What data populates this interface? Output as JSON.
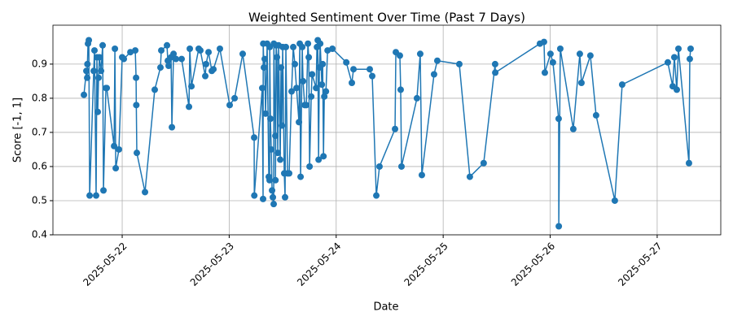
{
  "chart_data": {
    "type": "line",
    "title": "Weighted Sentiment Over Time (Past 7 Days)",
    "x_label": "Date",
    "y_label": "Score [-1, 1]",
    "color": "#1f77b4",
    "grid": true,
    "x": [
      "2025-05-21 15:25",
      "2025-05-21 15:58",
      "2025-05-21 16:09",
      "2025-05-21 16:12",
      "2025-05-21 16:20",
      "2025-05-21 16:31",
      "2025-05-21 16:42",
      "2025-05-21 17:37",
      "2025-05-21 17:47",
      "2025-05-21 18:09",
      "2025-05-21 18:20",
      "2025-05-21 18:31",
      "2025-05-21 18:42",
      "2025-05-21 18:53",
      "2025-05-21 19:15",
      "2025-05-21 19:37",
      "2025-05-21 19:48",
      "2025-05-21 20:21",
      "2025-05-21 20:32",
      "2025-05-21 22:11",
      "2025-05-21 22:22",
      "2025-05-21 22:33",
      "2025-05-21 23:16",
      "2025-05-22 00:00",
      "2025-05-22 00:22",
      "2025-05-22 01:50",
      "2025-05-22 02:56",
      "2025-05-22 03:07",
      "2025-05-22 03:10",
      "2025-05-22 03:17",
      "2025-05-22 05:07",
      "2025-05-22 07:18",
      "2025-05-22 08:35",
      "2025-05-22 08:46",
      "2025-05-22 10:03",
      "2025-05-22 10:14",
      "2025-05-22 10:25",
      "2025-05-22 10:58",
      "2025-05-22 11:09",
      "2025-05-22 11:31",
      "2025-05-22 12:04",
      "2025-05-22 13:20",
      "2025-05-22 14:59",
      "2025-05-22 15:10",
      "2025-05-22 15:32",
      "2025-05-22 17:10",
      "2025-05-22 17:32",
      "2025-05-22 18:38",
      "2025-05-22 18:49",
      "2025-05-22 19:22",
      "2025-05-22 20:06",
      "2025-05-22 20:28",
      "2025-05-22 21:55",
      "2025-05-23 00:07",
      "2025-05-23 01:13",
      "2025-05-23 03:02",
      "2025-05-23 05:36",
      "2025-05-23 05:38",
      "2025-05-23 07:25",
      "2025-05-23 07:36",
      "2025-05-23 07:38",
      "2025-05-23 07:47",
      "2025-05-23 07:58",
      "2025-05-23 08:09",
      "2025-05-23 08:31",
      "2025-05-23 08:53",
      "2025-05-23 09:04",
      "2025-05-23 09:06",
      "2025-05-23 09:15",
      "2025-05-23 09:26",
      "2025-05-23 09:37",
      "2025-05-23 09:48",
      "2025-05-23 09:59",
      "2025-05-23 10:01",
      "2025-05-23 10:21",
      "2025-05-23 10:23",
      "2025-05-23 10:32",
      "2025-05-23 10:43",
      "2025-05-23 10:54",
      "2025-05-23 11:05",
      "2025-05-23 11:27",
      "2025-05-23 11:38",
      "2025-05-23 11:49",
      "2025-05-23 12:00",
      "2025-05-23 12:21",
      "2025-05-23 12:32",
      "2025-05-23 12:43",
      "2025-05-23 13:05",
      "2025-05-23 13:27",
      "2025-05-23 14:00",
      "2025-05-23 14:22",
      "2025-05-23 14:44",
      "2025-05-23 15:06",
      "2025-05-23 15:39",
      "2025-05-23 15:50",
      "2025-05-23 16:01",
      "2025-05-23 16:23",
      "2025-05-23 16:34",
      "2025-05-23 16:56",
      "2025-05-23 17:18",
      "2025-05-23 17:40",
      "2025-05-23 17:51",
      "2025-05-23 18:02",
      "2025-05-23 18:24",
      "2025-05-23 18:35",
      "2025-05-23 19:30",
      "2025-05-23 19:41",
      "2025-05-23 19:52",
      "2025-05-23 20:03",
      "2025-05-23 20:14",
      "2025-05-23 20:25",
      "2025-05-23 20:47",
      "2025-05-23 20:58",
      "2025-05-23 21:09",
      "2025-05-23 21:20",
      "2025-05-23 21:42",
      "2025-05-23 22:04",
      "2025-05-23 23:09",
      "2025-05-24 02:16",
      "2025-05-24 03:31",
      "2025-05-24 03:53",
      "2025-05-24 07:32",
      "2025-05-24 08:05",
      "2025-05-24 09:00",
      "2025-05-24 09:43",
      "2025-05-24 13:12",
      "2025-05-24 13:23",
      "2025-05-24 14:17",
      "2025-05-24 14:28",
      "2025-05-24 14:39",
      "2025-05-24 18:07",
      "2025-05-24 18:51",
      "2025-05-24 19:13",
      "2025-05-24 21:57",
      "2025-05-24 22:41",
      "2025-05-25 03:37",
      "2025-05-25 05:59",
      "2025-05-25 09:05",
      "2025-05-25 11:39",
      "2025-05-25 11:41",
      "2025-05-25 21:42",
      "2025-05-25 22:37",
      "2025-05-25 22:48",
      "2025-05-26 00:04",
      "2025-05-26 00:37",
      "2025-05-26 01:54",
      "2025-05-26 01:56",
      "2025-05-26 02:16",
      "2025-05-26 05:11",
      "2025-05-26 06:39",
      "2025-05-26 07:01",
      "2025-05-26 09:01",
      "2025-05-26 10:18",
      "2025-05-26 14:30",
      "2025-05-26 16:09",
      "2025-05-27 02:23",
      "2025-05-27 03:29",
      "2025-05-27 03:51",
      "2025-05-27 04:24",
      "2025-05-27 04:46",
      "2025-05-27 07:08",
      "2025-05-27 07:19",
      "2025-05-27 07:30"
    ],
    "values": [
      0.81,
      0.88,
      0.86,
      0.9,
      0.96,
      0.97,
      0.515,
      0.88,
      0.94,
      0.515,
      0.92,
      0.76,
      0.86,
      0.92,
      0.88,
      0.955,
      0.53,
      0.83,
      0.83,
      0.66,
      0.945,
      0.595,
      0.65,
      0.92,
      0.915,
      0.935,
      0.94,
      0.86,
      0.78,
      0.64,
      0.525,
      0.825,
      0.89,
      0.94,
      0.955,
      0.91,
      0.895,
      0.92,
      0.715,
      0.93,
      0.915,
      0.915,
      0.775,
      0.945,
      0.835,
      0.945,
      0.94,
      0.865,
      0.9,
      0.935,
      0.88,
      0.885,
      0.945,
      0.78,
      0.8,
      0.93,
      0.685,
      0.515,
      0.83,
      0.505,
      0.96,
      0.89,
      0.915,
      0.755,
      0.96,
      0.57,
      0.56,
      0.95,
      0.74,
      0.65,
      0.53,
      0.51,
      0.49,
      0.96,
      0.69,
      0.56,
      0.955,
      0.92,
      0.64,
      0.955,
      0.62,
      0.89,
      0.72,
      0.95,
      0.58,
      0.51,
      0.95,
      0.58,
      0.58,
      0.82,
      0.95,
      0.9,
      0.83,
      0.73,
      0.96,
      0.57,
      0.95,
      0.85,
      0.78,
      0.78,
      0.96,
      0.92,
      0.6,
      0.805,
      0.87,
      0.83,
      0.95,
      0.97,
      0.62,
      0.89,
      0.96,
      0.84,
      0.9,
      0.63,
      0.805,
      0.82,
      0.94,
      0.945,
      0.905,
      0.845,
      0.885,
      0.885,
      0.865,
      0.515,
      0.6,
      0.71,
      0.935,
      0.925,
      0.825,
      0.6,
      0.8,
      0.93,
      0.575,
      0.87,
      0.91,
      0.9,
      0.57,
      0.61,
      0.9,
      0.875,
      0.96,
      0.965,
      0.875,
      0.93,
      0.905,
      0.74,
      0.425,
      0.945,
      0.71,
      0.93,
      0.845,
      0.925,
      0.75,
      0.5,
      0.84,
      0.905,
      0.835,
      0.92,
      0.825,
      0.945,
      0.61,
      0.915,
      0.945
    ],
    "xlim": [
      "2025-05-21 08:28",
      "2025-05-27 14:16"
    ],
    "xticks": [
      "2025-05-22",
      "2025-05-23",
      "2025-05-24",
      "2025-05-25",
      "2025-05-26",
      "2025-05-27"
    ],
    "ylim": [
      0.4,
      1.014
    ],
    "yticks": [
      0.4,
      0.5,
      0.6,
      0.7,
      0.8,
      0.9
    ]
  }
}
